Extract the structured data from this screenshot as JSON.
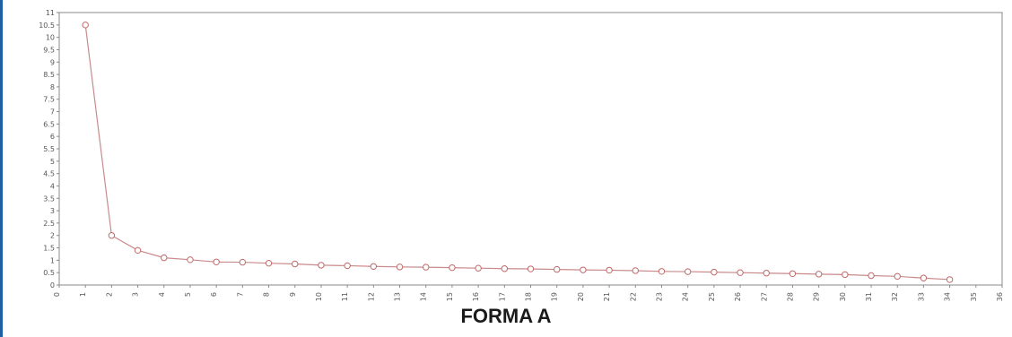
{
  "chart_data": {
    "type": "line",
    "title": "FORMA A",
    "xlabel": "",
    "ylabel": "",
    "xlim": [
      0,
      36
    ],
    "ylim": [
      0,
      11
    ],
    "x_ticks": [
      0,
      1,
      2,
      3,
      4,
      5,
      6,
      7,
      8,
      9,
      10,
      11,
      12,
      13,
      14,
      15,
      16,
      17,
      18,
      19,
      20,
      21,
      22,
      23,
      24,
      25,
      26,
      27,
      28,
      29,
      30,
      31,
      32,
      33,
      34,
      35,
      36
    ],
    "y_ticks": [
      0,
      0.5,
      1,
      1.5,
      2,
      2.5,
      3,
      3.5,
      4,
      4.5,
      5,
      5.5,
      6,
      6.5,
      7,
      7.5,
      8,
      8.5,
      9,
      9.5,
      10,
      10.5,
      11
    ],
    "grid": false,
    "series": [
      {
        "x": [
          1,
          2,
          3,
          4,
          5,
          6,
          7,
          8,
          9,
          10,
          11,
          12,
          13,
          14,
          15,
          16,
          17,
          18,
          19,
          20,
          21,
          22,
          23,
          24,
          25,
          26,
          27,
          28,
          29,
          30,
          31,
          32,
          33,
          34
        ],
        "values": [
          10.5,
          2.0,
          1.4,
          1.1,
          1.02,
          0.93,
          0.92,
          0.88,
          0.85,
          0.8,
          0.78,
          0.75,
          0.73,
          0.72,
          0.7,
          0.68,
          0.66,
          0.65,
          0.63,
          0.61,
          0.6,
          0.58,
          0.55,
          0.54,
          0.52,
          0.5,
          0.48,
          0.46,
          0.44,
          0.42,
          0.38,
          0.35,
          0.28,
          0.22
        ]
      }
    ],
    "colors": {
      "line": "#c98a8a",
      "marker_edge": "#c06a6a",
      "axis": "#8a8a8a"
    }
  }
}
